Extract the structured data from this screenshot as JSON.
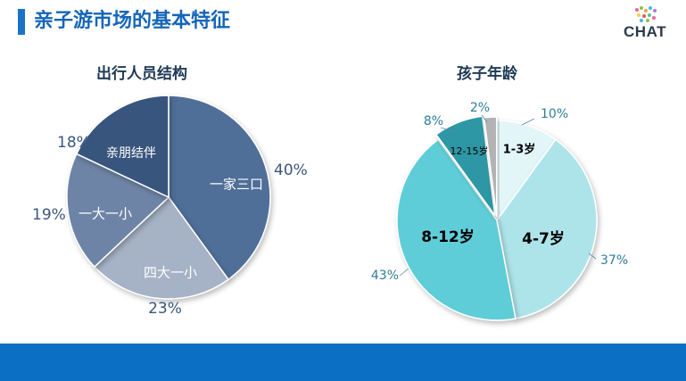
{
  "slide": {
    "title": "亲子游市场的基本特征"
  },
  "logo": {
    "text": "CHAT"
  },
  "colors": {
    "accent": "#1565b8",
    "footer": "#0b6fc4"
  },
  "chart_data": [
    {
      "type": "pie",
      "title": "出行人员结构",
      "series": [
        {
          "name": "一家三口",
          "value": 40,
          "label": "40%",
          "color": "#4f6e98"
        },
        {
          "name": "四大一小",
          "value": 23,
          "label": "23%",
          "color": "#a6b3c6"
        },
        {
          "name": "一大一小",
          "value": 19,
          "label": "19%",
          "color": "#6e84a6"
        },
        {
          "name": "亲朋结伴",
          "value": 18,
          "label": "18%",
          "color": "#39557e"
        }
      ]
    },
    {
      "type": "pie",
      "title": "孩子年龄",
      "series": [
        {
          "name": "1-3岁",
          "value": 10,
          "label": "10%",
          "color": "#e2f6f8"
        },
        {
          "name": "4-7岁",
          "value": 37,
          "label": "37%",
          "color": "#ade4ea"
        },
        {
          "name": "8-12岁",
          "value": 43,
          "label": "43%",
          "color": "#5ecdd8"
        },
        {
          "name": "12-15岁",
          "value": 8,
          "label": "8%",
          "color": "#2e97a5"
        },
        {
          "name": "",
          "value": 2,
          "label": "2%",
          "color": "#b3b3b3"
        }
      ]
    }
  ]
}
